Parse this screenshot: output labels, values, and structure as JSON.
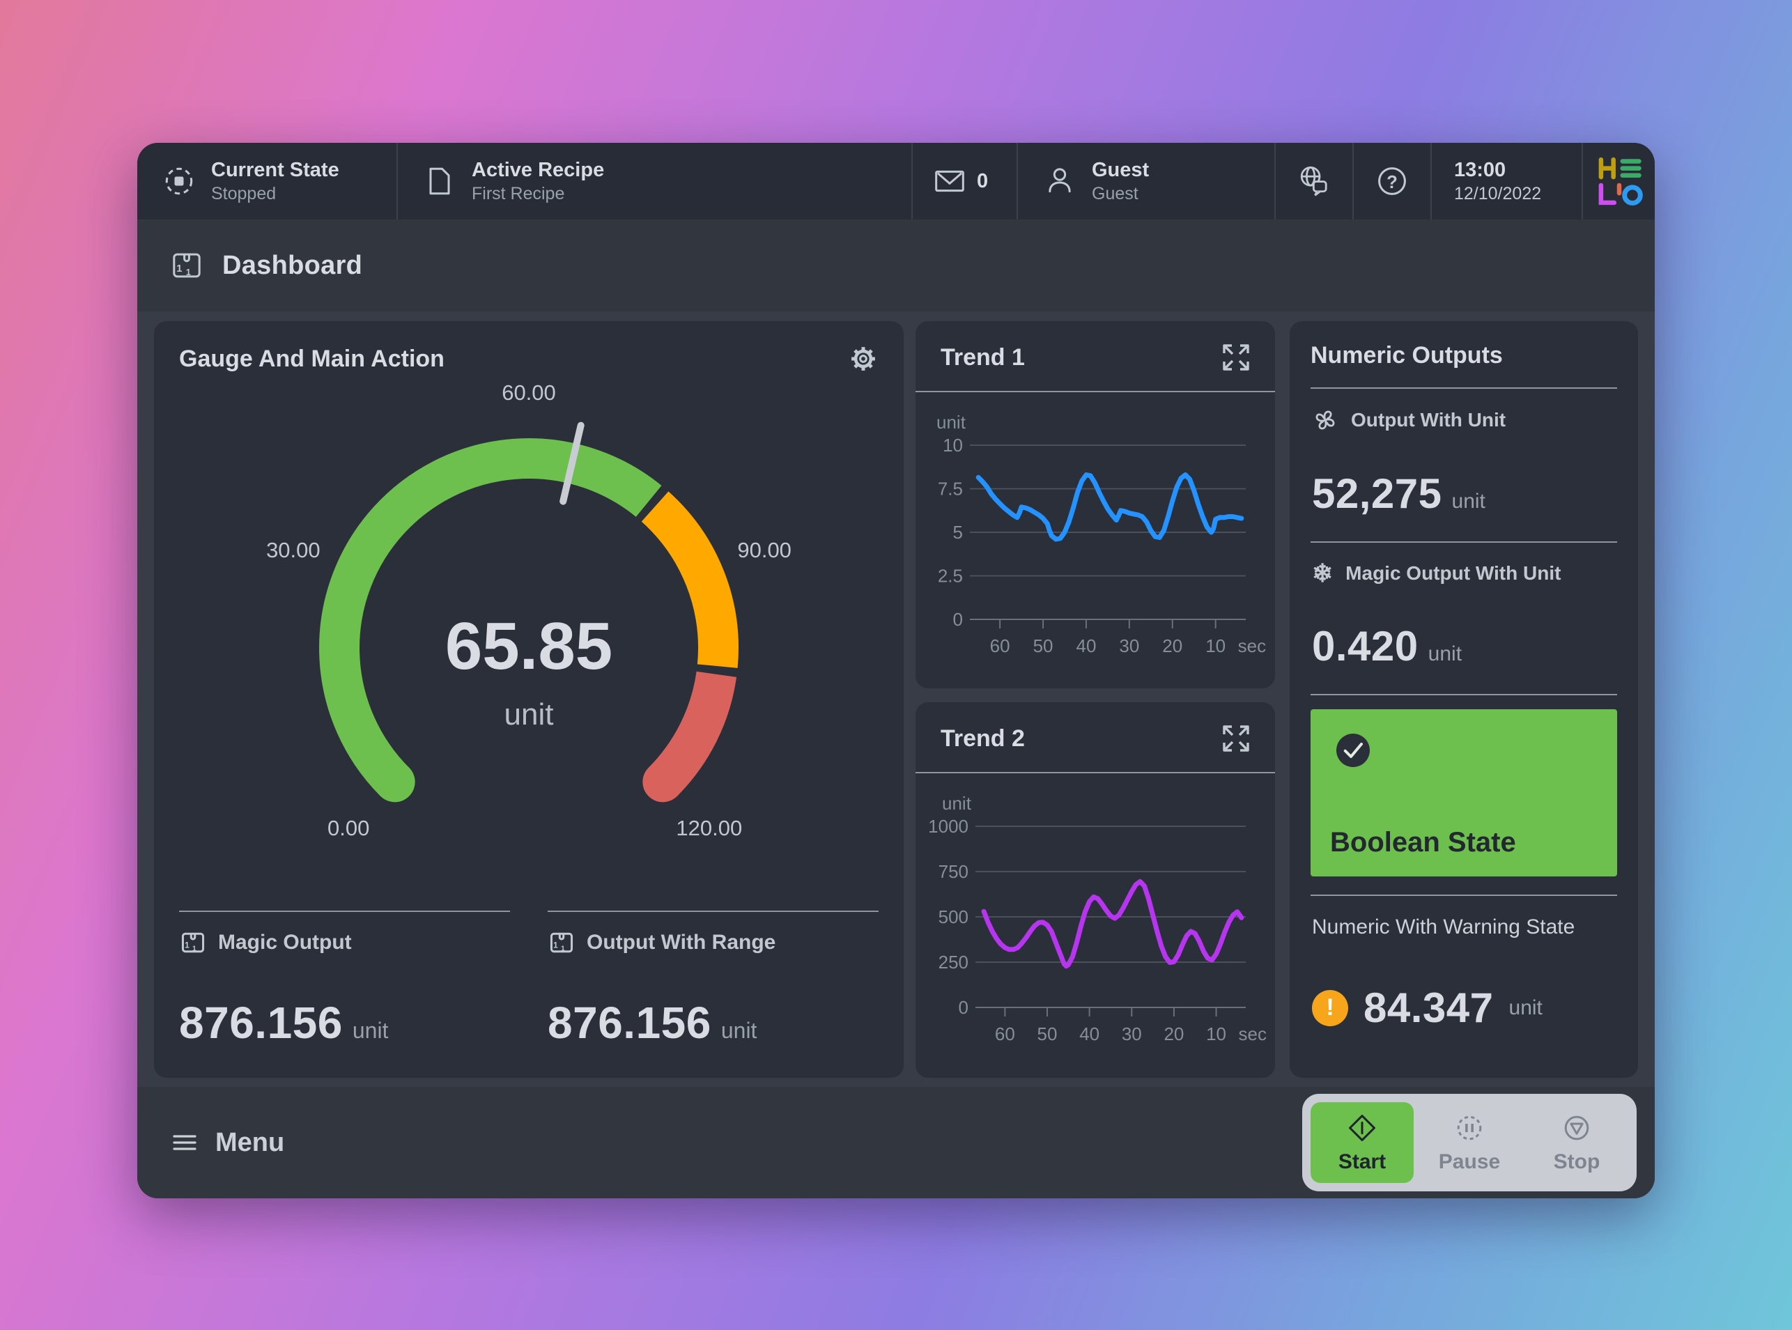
{
  "colors": {
    "green": "#6dbf4e",
    "orange": "#ffa800",
    "red": "#d9625c",
    "blue": "#2492ff",
    "purple": "#b835f0",
    "warning_badge": "#f7a61b",
    "action_tray": "#c9cdd3",
    "needle": "#c9cdd3"
  },
  "top_bar": {
    "current_state": {
      "label": "Current State",
      "value": "Stopped"
    },
    "active_recipe": {
      "label": "Active Recipe",
      "value": "First Recipe"
    },
    "messages_count": "0",
    "user": {
      "name": "Guest",
      "role": "Guest"
    },
    "clock": {
      "time": "13:00",
      "date": "12/10/2022"
    },
    "logo": "HELIO"
  },
  "page": {
    "title": "Dashboard"
  },
  "gauge_card": {
    "outputs": [
      {
        "label": "Magic Output",
        "value": "876.156",
        "unit": "unit"
      },
      {
        "label": "Output With Range",
        "value": "876.156",
        "unit": "unit"
      }
    ]
  },
  "numeric_panel": {
    "title": "Numeric Outputs",
    "output_with_unit": {
      "label": "Output With Unit",
      "value": "52,275",
      "unit": "unit"
    },
    "magic_output_with_unit": {
      "label": "Magic Output With Unit",
      "value": "0.420",
      "unit": "unit"
    },
    "boolean_state": {
      "label": "Boolean State",
      "state": "on"
    },
    "warning": {
      "label": "Numeric With Warning State",
      "value": "84.347",
      "unit": "unit"
    }
  },
  "bottom_bar": {
    "menu": "Menu",
    "start": "Start",
    "pause": "Pause",
    "stop": "Stop"
  },
  "chart_data": [
    {
      "id": "gauge",
      "type": "gauge",
      "title": "Gauge And Main Action",
      "min": 0,
      "max": 120,
      "value": 65.85,
      "value_label": "65.85",
      "unit": "unit",
      "tick_values": [
        0,
        30,
        60,
        90,
        120
      ],
      "tick_labels": [
        "0.00",
        "30.00",
        "60.00",
        "90.00",
        "120.00"
      ],
      "zones": [
        {
          "from": 0,
          "to": 78,
          "color": "#6dbf4e"
        },
        {
          "from": 78,
          "to": 103,
          "color": "#ffa800"
        },
        {
          "from": 103,
          "to": 120,
          "color": "#d9625c"
        }
      ]
    },
    {
      "id": "trend1",
      "type": "line",
      "title": "Trend 1",
      "ylabel": "unit",
      "ylim": [
        0,
        10
      ],
      "yticks": [
        {
          "value": 10,
          "label": "10"
        },
        {
          "value": 7.5,
          "label": "7.5"
        },
        {
          "value": 5,
          "label": "5"
        },
        {
          "value": 2.5,
          "label": "2.5"
        },
        {
          "value": 0,
          "label": "0"
        }
      ],
      "xticks": [
        60,
        50,
        40,
        30,
        20,
        10
      ],
      "x_unit": "sec",
      "x_axis": "seconds ago",
      "legend": "none",
      "grid": true,
      "color": "#2492ff",
      "points": [
        [
          65,
          8.15
        ],
        [
          64,
          7.9
        ],
        [
          63,
          7.6
        ],
        [
          62,
          7.2
        ],
        [
          61,
          6.9
        ],
        [
          60,
          6.65
        ],
        [
          59,
          6.4
        ],
        [
          58,
          6.2
        ],
        [
          57,
          6.0
        ],
        [
          56,
          5.85
        ],
        [
          55.5,
          6.1
        ],
        [
          55,
          6.45
        ],
        [
          54,
          6.4
        ],
        [
          53,
          6.3
        ],
        [
          52,
          6.15
        ],
        [
          51,
          6.0
        ],
        [
          50,
          5.8
        ],
        [
          49,
          5.5
        ],
        [
          48.5,
          5.1
        ],
        [
          48,
          4.8
        ],
        [
          47,
          4.6
        ],
        [
          46,
          4.65
        ],
        [
          45,
          5.0
        ],
        [
          44,
          5.6
        ],
        [
          43,
          6.4
        ],
        [
          42,
          7.3
        ],
        [
          41,
          7.95
        ],
        [
          40,
          8.3
        ],
        [
          39,
          8.25
        ],
        [
          38,
          7.85
        ],
        [
          37,
          7.3
        ],
        [
          36,
          6.8
        ],
        [
          35,
          6.35
        ],
        [
          34,
          6.0
        ],
        [
          33,
          5.7
        ],
        [
          32.5,
          5.95
        ],
        [
          32,
          6.25
        ],
        [
          31,
          6.2
        ],
        [
          30,
          6.1
        ],
        [
          29,
          6.05
        ],
        [
          28,
          6.0
        ],
        [
          27,
          5.9
        ],
        [
          26,
          5.6
        ],
        [
          25,
          5.1
        ],
        [
          24,
          4.75
        ],
        [
          23,
          4.7
        ],
        [
          22,
          5.1
        ],
        [
          21,
          5.9
        ],
        [
          20,
          6.8
        ],
        [
          19,
          7.6
        ],
        [
          18,
          8.1
        ],
        [
          17,
          8.3
        ],
        [
          16,
          8.05
        ],
        [
          15,
          7.4
        ],
        [
          14,
          6.6
        ],
        [
          13,
          5.9
        ],
        [
          12,
          5.3
        ],
        [
          11,
          5.0
        ],
        [
          10.5,
          5.2
        ],
        [
          10,
          5.75
        ],
        [
          9,
          5.85
        ],
        [
          8,
          5.85
        ],
        [
          7,
          5.9
        ],
        [
          6,
          5.9
        ],
        [
          5,
          5.85
        ],
        [
          4,
          5.8
        ]
      ]
    },
    {
      "id": "trend2",
      "type": "line",
      "title": "Trend 2",
      "ylabel": "unit",
      "ylim": [
        0,
        1000
      ],
      "yticks": [
        {
          "value": 1000,
          "label": "1000"
        },
        {
          "value": 750,
          "label": "750"
        },
        {
          "value": 500,
          "label": "500"
        },
        {
          "value": 250,
          "label": "250"
        },
        {
          "value": 0,
          "label": "0"
        }
      ],
      "xticks": [
        60,
        50,
        40,
        30,
        20,
        10
      ],
      "x_unit": "sec",
      "x_axis": "seconds ago",
      "legend": "none",
      "grid": true,
      "color": "#b835f0",
      "points": [
        [
          65,
          530
        ],
        [
          64,
          470
        ],
        [
          63,
          420
        ],
        [
          62,
          380
        ],
        [
          61,
          350
        ],
        [
          60,
          330
        ],
        [
          59,
          320
        ],
        [
          58,
          320
        ],
        [
          57,
          330
        ],
        [
          56,
          355
        ],
        [
          55,
          385
        ],
        [
          54,
          420
        ],
        [
          53,
          450
        ],
        [
          52,
          468
        ],
        [
          51,
          470
        ],
        [
          50,
          455
        ],
        [
          49,
          420
        ],
        [
          48,
          360
        ],
        [
          47,
          300
        ],
        [
          46,
          240
        ],
        [
          45.5,
          228
        ],
        [
          45,
          235
        ],
        [
          44,
          280
        ],
        [
          43,
          360
        ],
        [
          42,
          450
        ],
        [
          41,
          530
        ],
        [
          40,
          585
        ],
        [
          39,
          610
        ],
        [
          38,
          600
        ],
        [
          37,
          570
        ],
        [
          36,
          535
        ],
        [
          35,
          505
        ],
        [
          34,
          492
        ],
        [
          33,
          510
        ],
        [
          32,
          550
        ],
        [
          31,
          595
        ],
        [
          30,
          640
        ],
        [
          29,
          678
        ],
        [
          28,
          695
        ],
        [
          27,
          670
        ],
        [
          26,
          600
        ],
        [
          25,
          510
        ],
        [
          24,
          420
        ],
        [
          23,
          340
        ],
        [
          22,
          280
        ],
        [
          21,
          248
        ],
        [
          20,
          252
        ],
        [
          19,
          290
        ],
        [
          18,
          345
        ],
        [
          17,
          395
        ],
        [
          16,
          420
        ],
        [
          15,
          408
        ],
        [
          14,
          365
        ],
        [
          13,
          310
        ],
        [
          12,
          272
        ],
        [
          11,
          262
        ],
        [
          10,
          295
        ],
        [
          9,
          350
        ],
        [
          8,
          415
        ],
        [
          7,
          470
        ],
        [
          6,
          510
        ],
        [
          5,
          528
        ],
        [
          4,
          495
        ]
      ]
    }
  ]
}
